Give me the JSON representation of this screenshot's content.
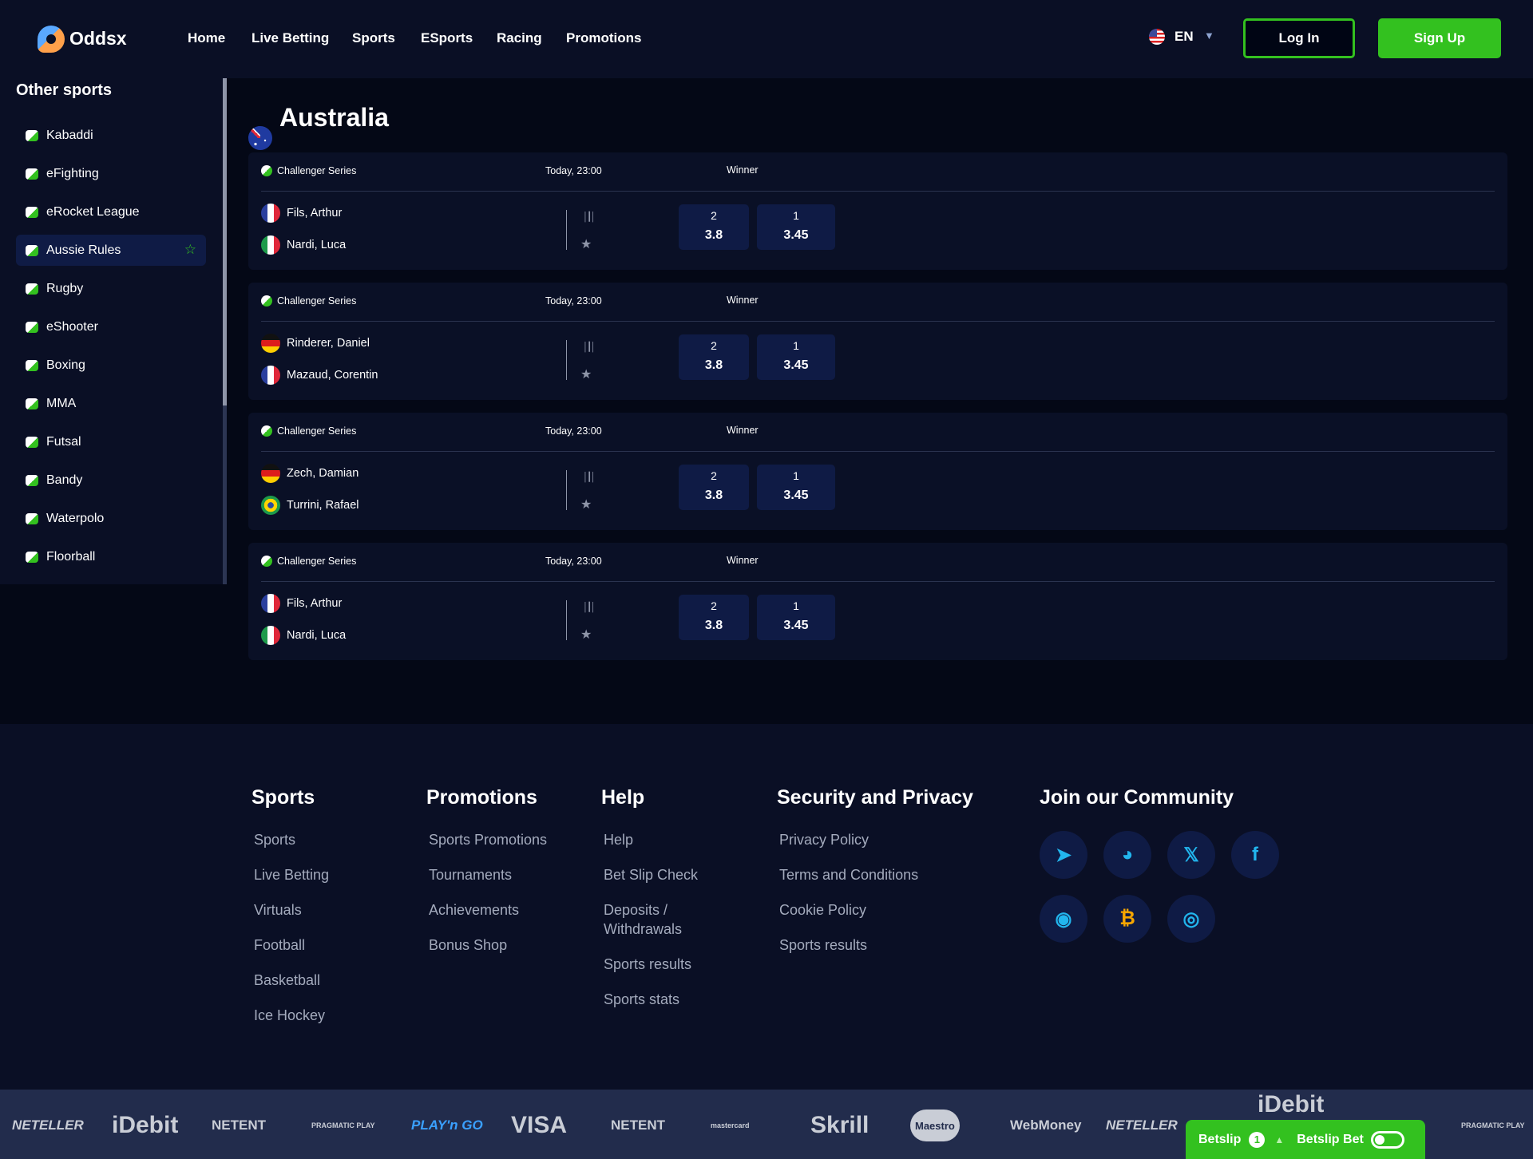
{
  "colors": {
    "accent": "#33c11f",
    "header_bg": "#0a0f25",
    "main_bg": "#040816",
    "card_bg": "#0a1026",
    "odds_bg": "#0f1b45",
    "social_icon": "#22b6ee",
    "bitcoin": "#f7a600"
  },
  "header": {
    "brand": "Oddsx",
    "nav": [
      "Home",
      "Live Betting",
      "Sports",
      "ESports",
      "Racing",
      "Promotions"
    ],
    "language": "EN",
    "language_flag": "us",
    "login": "Log In",
    "signup": "Sign Up"
  },
  "sidebar": {
    "title": "Other sports",
    "items": [
      {
        "label": "Kabaddi",
        "icon": "kabaddi-icon"
      },
      {
        "label": "eFighting",
        "icon": "efighting-icon"
      },
      {
        "label": "eRocket League",
        "icon": "erocket-league-icon"
      },
      {
        "label": "Aussie Rules",
        "icon": "aussie-rules-icon",
        "active": true,
        "favorite": true
      },
      {
        "label": "Rugby",
        "icon": "rugby-icon"
      },
      {
        "label": "eShooter",
        "icon": "eshooter-icon"
      },
      {
        "label": "Boxing",
        "icon": "boxing-icon"
      },
      {
        "label": "MMA",
        "icon": "mma-icon"
      },
      {
        "label": "Futsal",
        "icon": "futsal-icon"
      },
      {
        "label": "Bandy",
        "icon": "bandy-icon"
      },
      {
        "label": "Waterpolo",
        "icon": "waterpolo-icon"
      },
      {
        "label": "Floorball",
        "icon": "floorball-icon"
      }
    ]
  },
  "main": {
    "title": "Australia",
    "title_flag": "au",
    "matches": [
      {
        "league": "Challenger Series",
        "time": "Today, 23:00",
        "market": "Winner",
        "teams": [
          {
            "name": "Fils, Arthur",
            "flag": "fr"
          },
          {
            "name": "Nardi, Luca",
            "flag": "it"
          }
        ],
        "odds": [
          {
            "label": "2",
            "value": "3.8"
          },
          {
            "label": "1",
            "value": "3.45"
          }
        ]
      },
      {
        "league": "Challenger Series",
        "time": "Today, 23:00",
        "market": "Winner",
        "teams": [
          {
            "name": "Rinderer, Daniel",
            "flag": "de"
          },
          {
            "name": "Mazaud, Corentin",
            "flag": "fr"
          }
        ],
        "odds": [
          {
            "label": "2",
            "value": "3.8"
          },
          {
            "label": "1",
            "value": "3.45"
          }
        ]
      },
      {
        "league": "Challenger Series",
        "time": "Today, 23:00",
        "market": "Winner",
        "teams": [
          {
            "name": "Zech, Damian",
            "flag": "de"
          },
          {
            "name": "Turrini, Rafael",
            "flag": "br"
          }
        ],
        "odds": [
          {
            "label": "2",
            "value": "3.8"
          },
          {
            "label": "1",
            "value": "3.45"
          }
        ]
      },
      {
        "league": "Challenger Series",
        "time": "Today, 23:00",
        "market": "Winner",
        "teams": [
          {
            "name": "Fils, Arthur",
            "flag": "fr"
          },
          {
            "name": "Nardi, Luca",
            "flag": "it"
          }
        ],
        "odds": [
          {
            "label": "2",
            "value": "3.8"
          },
          {
            "label": "1",
            "value": "3.45"
          }
        ]
      }
    ]
  },
  "footer": {
    "columns": [
      {
        "title": "Sports",
        "links": [
          "Sports",
          "Live Betting",
          "Virtuals",
          "Football",
          "Basketball",
          "Ice Hockey"
        ]
      },
      {
        "title": "Promotions",
        "links": [
          "Sports Promotions",
          "Tournaments",
          "Achievements",
          "Bonus Shop"
        ]
      },
      {
        "title": "Help",
        "links": [
          "Help",
          "Bet Slip Check",
          "Deposits / Withdrawals",
          "Sports results",
          "Sports stats"
        ]
      },
      {
        "title": "Security and Privacy",
        "links": [
          "Privacy Policy",
          "Terms and Conditions",
          "Cookie Policy",
          "Sports results"
        ]
      }
    ],
    "community": {
      "title": "Join our Community",
      "icons": [
        "telegram-icon",
        "github-icon",
        "x-icon",
        "facebook-icon",
        "discord-icon",
        "bitcoin-icon",
        "instagram-icon"
      ]
    }
  },
  "payments": [
    "NETELLER",
    "iDebit",
    "NETENT",
    "PRAGMATIC PLAY",
    "PLAY'n GO",
    "VISA",
    "NETENT",
    "mastercard",
    "Skrill",
    "Maestro",
    "WebMoney",
    "NETELLER",
    "iDebit",
    "PRAGMATIC PLAY"
  ],
  "betslip": {
    "label": "Betslip",
    "count": "1",
    "bet_label": "Betslip Bet",
    "toggle_on": false
  }
}
